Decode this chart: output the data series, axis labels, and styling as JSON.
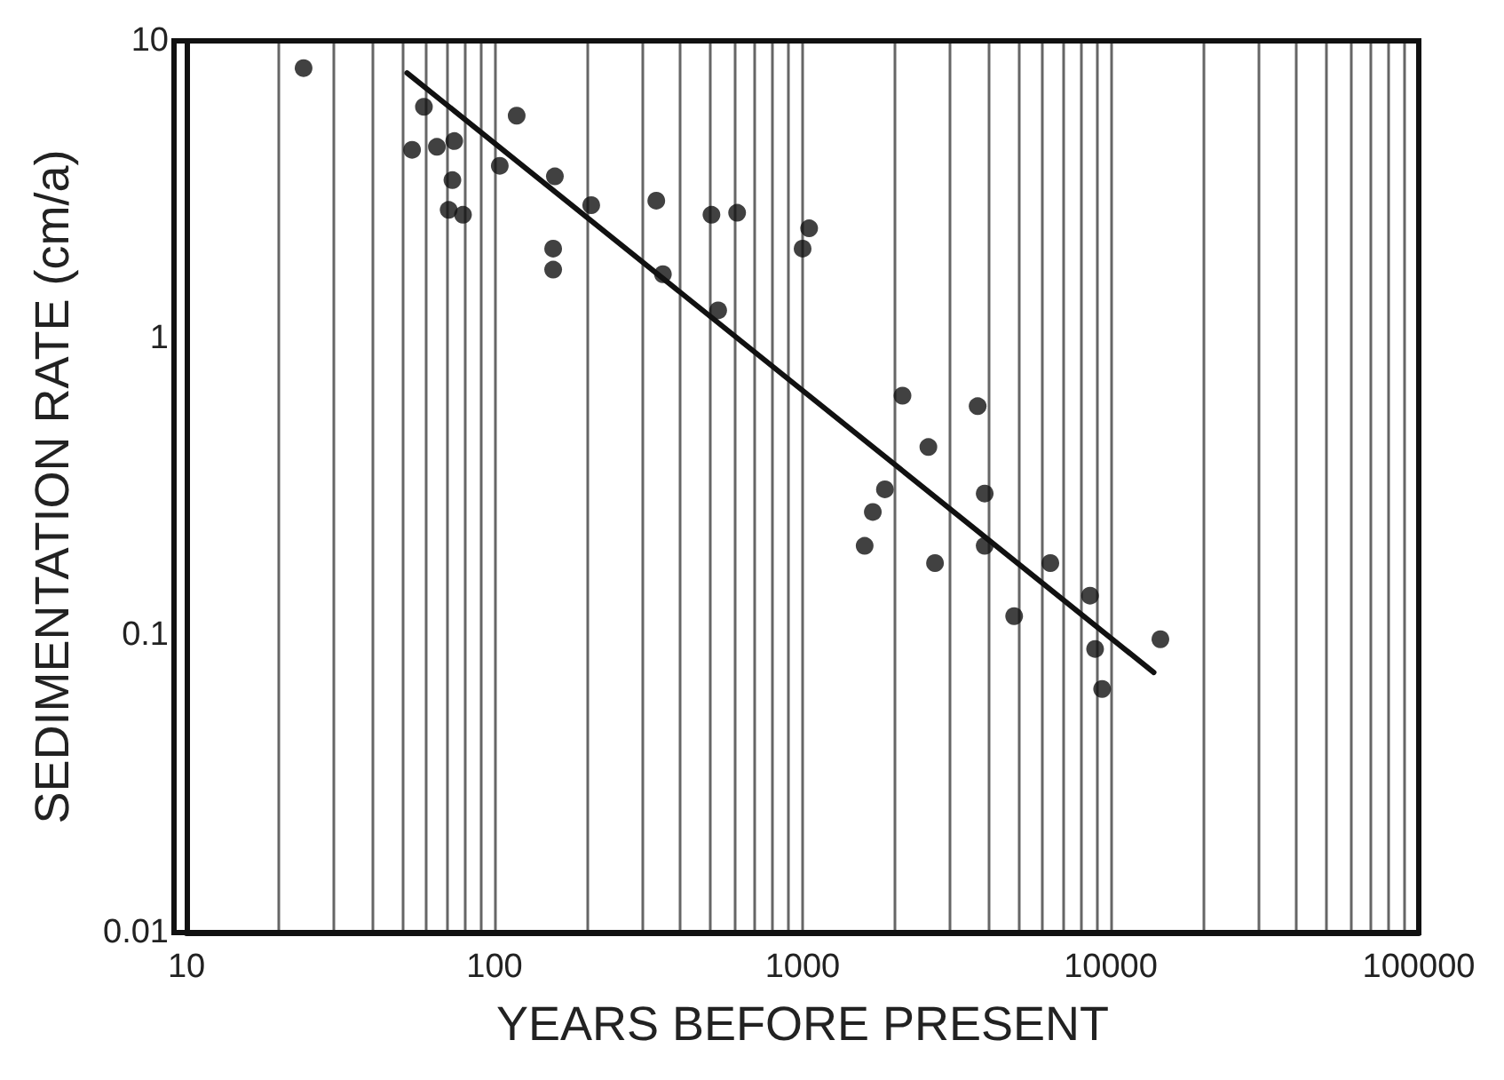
{
  "chart_data": {
    "type": "scatter",
    "xlabel": "YEARS BEFORE PRESENT",
    "ylabel": "SEDIMENTATION RATE (cm/a)",
    "log": "xy",
    "grid": "x",
    "xlim": [
      10,
      100000
    ],
    "ylim": [
      0.01,
      10
    ],
    "xticks": [
      10,
      {
        "value": 20,
        "label": null
      },
      {
        "value": 30,
        "label": null
      },
      {
        "value": 40,
        "label": null
      },
      {
        "value": 50,
        "label": null
      },
      {
        "value": 60,
        "label": null
      },
      {
        "value": 70,
        "label": null
      },
      {
        "value": 80,
        "label": null
      },
      {
        "value": 90,
        "label": null
      },
      100,
      {
        "value": 200,
        "label": null
      },
      {
        "value": 300,
        "label": null
      },
      {
        "value": 400,
        "label": null
      },
      {
        "value": 500,
        "label": null
      },
      {
        "value": 600,
        "label": null
      },
      {
        "value": 700,
        "label": null
      },
      {
        "value": 800,
        "label": null
      },
      {
        "value": 900,
        "label": null
      },
      1000,
      {
        "value": 2000,
        "label": null
      },
      {
        "value": 3000,
        "label": null
      },
      {
        "value": 4000,
        "label": null
      },
      {
        "value": 5000,
        "label": null
      },
      {
        "value": 6000,
        "label": null
      },
      {
        "value": 7000,
        "label": null
      },
      {
        "value": 8000,
        "label": null
      },
      {
        "value": 9000,
        "label": null
      },
      10000,
      {
        "value": 20000,
        "label": null
      },
      {
        "value": 30000,
        "label": null
      },
      {
        "value": 40000,
        "label": null
      },
      {
        "value": 50000,
        "label": null
      },
      {
        "value": 60000,
        "label": null
      },
      {
        "value": 70000,
        "label": null
      },
      {
        "value": 80000,
        "label": null
      },
      {
        "value": 90000,
        "label": null
      },
      100000
    ],
    "yticks": [
      0.01,
      0.1,
      1,
      10
    ],
    "series": [
      {
        "marker": "circle",
        "color": "#111111",
        "x": [
          24,
          54,
          59,
          65,
          74,
          73,
          71,
          79,
          104,
          118,
          157,
          155,
          155,
          206,
          335,
          352,
          506,
          532,
          613,
          1050,
          1000,
          2110,
          3700,
          2560,
          1850,
          3900,
          1690,
          1590,
          3900,
          2690,
          6370,
          4860,
          8570,
          8900,
          9380,
          14500
        ],
        "values": [
          8.1,
          4.3,
          6.0,
          4.4,
          4.6,
          3.4,
          2.7,
          2.6,
          3.8,
          5.6,
          3.5,
          2.0,
          1.7,
          2.8,
          2.9,
          1.64,
          2.6,
          1.24,
          2.64,
          2.34,
          2.0,
          0.64,
          0.59,
          0.43,
          0.31,
          0.3,
          0.26,
          0.2,
          0.2,
          0.175,
          0.175,
          0.116,
          0.136,
          0.09,
          0.066,
          0.097
        ]
      },
      {
        "type": "line",
        "marker": "none",
        "line_style": "solid",
        "color": "#111111",
        "x": [
          52,
          13800
        ],
        "values": [
          7.8,
          0.075
        ]
      }
    ]
  }
}
